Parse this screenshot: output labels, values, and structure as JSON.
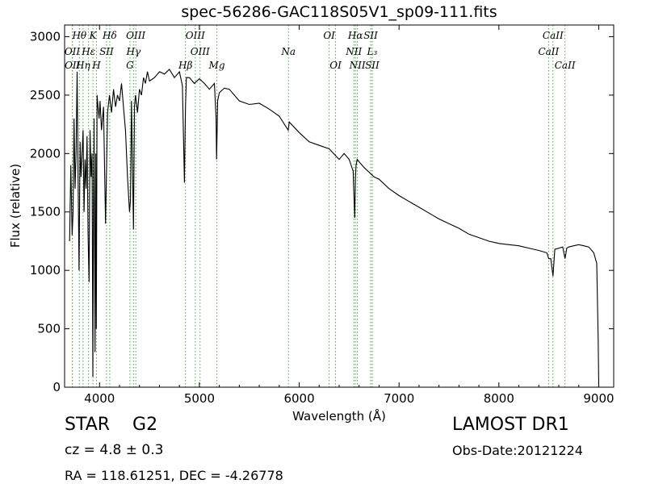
{
  "title": "spec-56286-GAC118S05V1_sp09-111.fits",
  "info": {
    "object_class": "STAR",
    "subclass": "G2",
    "survey": "LAMOST DR1",
    "redshift": "cz = 4.8 ± 0.3",
    "obs_date": "Obs-Date:20121224",
    "coords": "RA = 118.61251, DEC = -4.26778"
  },
  "chart_data": {
    "type": "line",
    "title": "spec-56286-GAC118S05V1_sp09-111.fits",
    "xlabel": "Wavelength (Å)",
    "ylabel": "Flux (relative)",
    "xlim": [
      3650,
      9150
    ],
    "ylim": [
      0,
      3100
    ],
    "x_ticks": [
      4000,
      5000,
      6000,
      7000,
      8000,
      9000
    ],
    "y_ticks": [
      0,
      500,
      1000,
      1500,
      2000,
      2500,
      3000
    ],
    "grid": false,
    "line_color": "#000000",
    "marker_color": "#44aa44",
    "series": [
      {
        "x": [
          3700,
          3712,
          3725,
          3735,
          3745,
          3755,
          3765,
          3775,
          3785,
          3795,
          3805,
          3815,
          3825,
          3835,
          3845,
          3855,
          3865,
          3875,
          3885,
          3895,
          3905,
          3915,
          3925,
          3933,
          3938,
          3945,
          3955,
          3962,
          3968,
          3975,
          3985,
          3995,
          4005,
          4020,
          4040,
          4060,
          4080,
          4100,
          4120,
          4140,
          4160,
          4180,
          4200,
          4220,
          4240,
          4260,
          4280,
          4300,
          4310,
          4320,
          4340,
          4350,
          4360,
          4380,
          4400,
          4420,
          4440,
          4460,
          4480,
          4500,
          4550,
          4600,
          4650,
          4700,
          4750,
          4800,
          4830,
          4850,
          4861,
          4870,
          4900,
          4950,
          5000,
          5050,
          5100,
          5150,
          5167,
          5172,
          5178,
          5183,
          5200,
          5250,
          5300,
          5400,
          5500,
          5600,
          5700,
          5800,
          5890,
          5900,
          6000,
          6100,
          6200,
          6300,
          6400,
          6450,
          6500,
          6540,
          6556,
          6563,
          6570,
          6580,
          6600,
          6650,
          6700,
          6750,
          6800,
          6900,
          7000,
          7100,
          7200,
          7300,
          7400,
          7500,
          7600,
          7700,
          7800,
          7900,
          8000,
          8100,
          8200,
          8300,
          8400,
          8480,
          8500,
          8520,
          8542,
          8560,
          8600,
          8640,
          8662,
          8680,
          8700,
          8750,
          8800,
          8850,
          8900,
          8950,
          8980,
          8995,
          9000,
          9005
        ],
        "y": [
          1250,
          1900,
          1300,
          1500,
          2300,
          1700,
          2000,
          2700,
          1800,
          1000,
          2100,
          1800,
          2000,
          2200,
          1500,
          1950,
          1700,
          2150,
          1300,
          900,
          2200,
          1800,
          2000,
          90,
          1300,
          2300,
          300,
          2000,
          500,
          2500,
          2400,
          2300,
          2450,
          2200,
          2400,
          1400,
          2350,
          2500,
          2350,
          2550,
          2400,
          2500,
          2450,
          2600,
          2400,
          2200,
          1800,
          1500,
          1600,
          2450,
          1350,
          2400,
          2500,
          2350,
          2550,
          2500,
          2650,
          2600,
          2700,
          2620,
          2650,
          2700,
          2680,
          2720,
          2650,
          2700,
          2580,
          1750,
          2400,
          2650,
          2650,
          2600,
          2640,
          2600,
          2550,
          2600,
          2300,
          1950,
          2200,
          2450,
          2520,
          2560,
          2550,
          2450,
          2420,
          2430,
          2380,
          2320,
          2200,
          2270,
          2180,
          2100,
          2070,
          2040,
          1950,
          2000,
          1950,
          1850,
          1450,
          1800,
          1900,
          1950,
          1930,
          1880,
          1840,
          1800,
          1780,
          1700,
          1640,
          1590,
          1540,
          1490,
          1440,
          1400,
          1360,
          1310,
          1280,
          1250,
          1230,
          1220,
          1210,
          1190,
          1170,
          1150,
          1100,
          1100,
          950,
          1180,
          1190,
          1200,
          1100,
          1190,
          1200,
          1210,
          1220,
          1210,
          1200,
          1150,
          1060,
          400,
          0,
          0
        ]
      }
    ],
    "lines": [
      {
        "name": "Hθ",
        "x": 3798,
        "label_row": 0
      },
      {
        "name": "OII",
        "x": 3727,
        "label_row": 1
      },
      {
        "name": "OII",
        "x": 3729,
        "label_row": 2
      },
      {
        "name": "Hη",
        "x": 3835,
        "label_row": 2
      },
      {
        "name": "Hε",
        "x": 3890,
        "label_row": 1
      },
      {
        "name": "SII",
        "x": 4070,
        "label_row": 1
      },
      {
        "name": "K",
        "x": 3934,
        "label_row": 0
      },
      {
        "name": "H",
        "x": 3969,
        "label_row": 2
      },
      {
        "name": "Hδ",
        "x": 4102,
        "label_row": 0
      },
      {
        "name": "OIII",
        "x": 4363,
        "label_row": 0
      },
      {
        "name": "Hγ",
        "x": 4340,
        "label_row": 1
      },
      {
        "name": "G",
        "x": 4305,
        "label_row": 2
      },
      {
        "name": "OIII",
        "x": 4959,
        "label_row": 0
      },
      {
        "name": "OIII",
        "x": 5007,
        "label_row": 1
      },
      {
        "name": "Hβ",
        "x": 4861,
        "label_row": 2
      },
      {
        "name": "Mg",
        "x": 5175,
        "label_row": 2
      },
      {
        "name": "Na",
        "x": 5892,
        "label_row": 1
      },
      {
        "name": "OI",
        "x": 6300,
        "label_row": 0
      },
      {
        "name": "OI",
        "x": 6364,
        "label_row": 2
      },
      {
        "name": "Hα",
        "x": 6563,
        "label_row": 0
      },
      {
        "name": "SII",
        "x": 6716,
        "label_row": 0
      },
      {
        "name": "NII",
        "x": 6548,
        "label_row": 1
      },
      {
        "name": "L₃",
        "x": 6731,
        "label_row": 1
      },
      {
        "name": "NII",
        "x": 6583,
        "label_row": 2
      },
      {
        "name": "SII",
        "x": 6731,
        "label_row": 2
      },
      {
        "name": "CaII",
        "x": 8542,
        "label_row": 0
      },
      {
        "name": "CaII",
        "x": 8498,
        "label_row": 1
      },
      {
        "name": "CaII",
        "x": 8662,
        "label_row": 2
      }
    ]
  }
}
